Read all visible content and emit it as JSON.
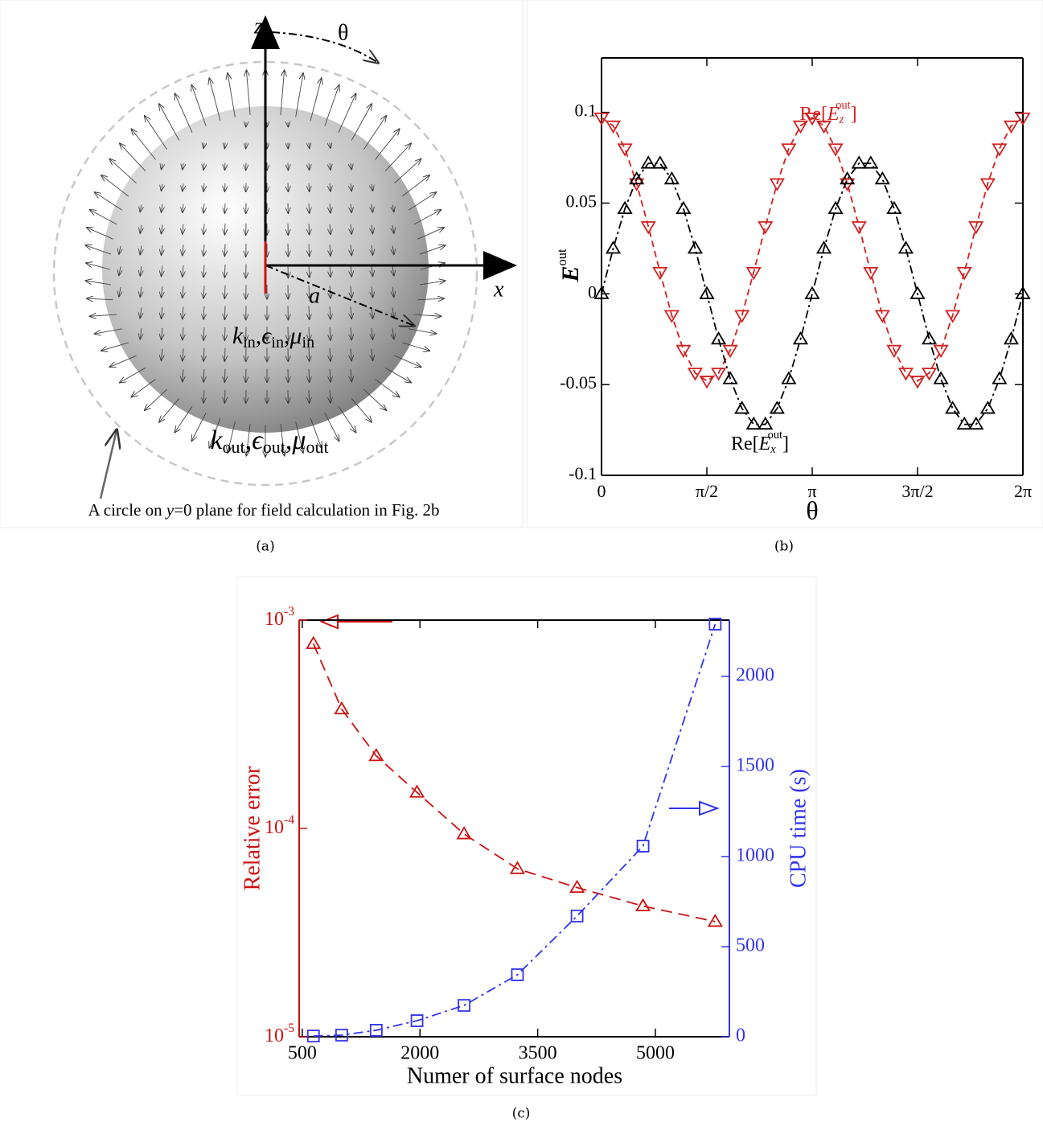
{
  "diagram": {
    "z_label": "z",
    "theta_label": "θ",
    "x_label": "x",
    "radius_label": "a",
    "medium_in": [
      "k",
      "in",
      ",",
      "ϵ",
      "in",
      ",",
      "μ",
      "in"
    ],
    "medium_out": [
      "k",
      "out",
      ",",
      "ϵ",
      "out",
      ",",
      "μ",
      "out"
    ],
    "circle_note": [
      "A circle on ",
      "y",
      "=0 plane for field calculation in Fig. 2b"
    ],
    "caption": "(a)"
  },
  "chart_data": [
    {
      "type": "line",
      "caption": "(b)",
      "xlabel": "θ",
      "ylabel": [
        "E",
        "out"
      ],
      "x": [
        0,
        0.1745,
        0.3491,
        0.5236,
        0.6981,
        0.8727,
        1.0472,
        1.2217,
        1.3963,
        1.5708,
        1.7453,
        1.9199,
        2.0944,
        2.2689,
        2.4435,
        2.618,
        2.7925,
        2.9671,
        3.1416,
        3.3161,
        3.4907,
        3.6652,
        3.8397,
        4.0143,
        4.1888,
        4.3633,
        4.5379,
        4.7124,
        4.8869,
        5.0615,
        5.236,
        5.4105,
        5.5851,
        5.7596,
        5.9341,
        6.1087,
        6.2832
      ],
      "series": [
        {
          "name": [
            "Re[",
            "E",
            "z",
            "out",
            "]"
          ],
          "color": "#d42020",
          "marker": "triangle-down",
          "values": [
            0.097,
            0.0926,
            0.08,
            0.0608,
            0.0371,
            0.0119,
            -0.0118,
            -0.031,
            -0.0436,
            -0.048,
            -0.0436,
            -0.031,
            -0.0118,
            0.0119,
            0.0371,
            0.0608,
            0.08,
            0.0926,
            0.097,
            0.0926,
            0.08,
            0.0608,
            0.0371,
            0.0119,
            -0.0118,
            -0.031,
            -0.0436,
            -0.048,
            -0.0436,
            -0.031,
            -0.0118,
            0.0119,
            0.0371,
            0.0608,
            0.08,
            0.0926,
            0.097
          ]
        },
        {
          "name": [
            "Re[",
            "E",
            "x",
            "out",
            "]"
          ],
          "color": "#000000",
          "marker": "triangle-up",
          "values": [
            0,
            0.025,
            0.0469,
            0.0632,
            0.0719,
            0.0719,
            0.0632,
            0.0469,
            0.025,
            0,
            -0.025,
            -0.0469,
            -0.0632,
            -0.0719,
            -0.0719,
            -0.0632,
            -0.0469,
            -0.025,
            0,
            0.025,
            0.0469,
            0.0632,
            0.0719,
            0.0719,
            0.0632,
            0.0469,
            0.025,
            0,
            -0.025,
            -0.0469,
            -0.0632,
            -0.0719,
            -0.0719,
            -0.0632,
            -0.0469,
            -0.025,
            0
          ]
        }
      ],
      "xlim": [
        0,
        6.2832
      ],
      "xticks": [
        0,
        {
          "value": 1.5708,
          "label": "π/2"
        },
        {
          "value": 3.1416,
          "label": "π"
        },
        {
          "value": 4.7124,
          "label": "3π/2"
        },
        {
          "value": 6.2832,
          "label": "2π"
        }
      ],
      "ylim": [
        -0.1,
        0.13
      ],
      "yticks": [
        -0.1,
        -0.05,
        0,
        0.05,
        0.1
      ],
      "grid": false
    },
    {
      "type": "line",
      "caption": "(c)",
      "xlabel": "Numer of surface nodes",
      "ylabel": "Relative error",
      "y2label": "CPU time (s)",
      "x": [
        642,
        1002,
        1442,
        1962,
        2562,
        3242,
        4002,
        4842,
        5762
      ],
      "series": [
        {
          "name": "Relative error",
          "color": "#cc1111",
          "marker": "triangle-up",
          "axis": "y",
          "values": [
            0.00077,
            0.000374,
            0.000223,
            0.000149,
            9.4e-05,
            6.4e-05,
            5.2e-05,
            4.24e-05,
            3.57e-05
          ]
        },
        {
          "name": "CPU time (s)",
          "color": "#3333ee",
          "marker": "square",
          "axis": "y2",
          "values": [
            4,
            9,
            36,
            89,
            174,
            344,
            670,
            1058,
            2290
          ]
        }
      ],
      "xlim": [
        460,
        5943
      ],
      "xticks": [
        500,
        2000,
        3500,
        5000
      ],
      "yscale": "log",
      "ylim": [
        1e-05,
        0.001
      ],
      "yticks": [
        {
          "value": 1e-05,
          "label": [
            "10",
            "-5"
          ]
        },
        {
          "value": 0.0001,
          "label": [
            "10",
            "-4"
          ]
        },
        {
          "value": 0.001,
          "label": [
            "10",
            "-3"
          ]
        }
      ],
      "y2lim": [
        0,
        2312
      ],
      "y2ticks": [
        0,
        500,
        1000,
        1500,
        2000
      ],
      "y_color": "#cc1111",
      "y2_color": "#3333ee",
      "grid": false
    }
  ]
}
